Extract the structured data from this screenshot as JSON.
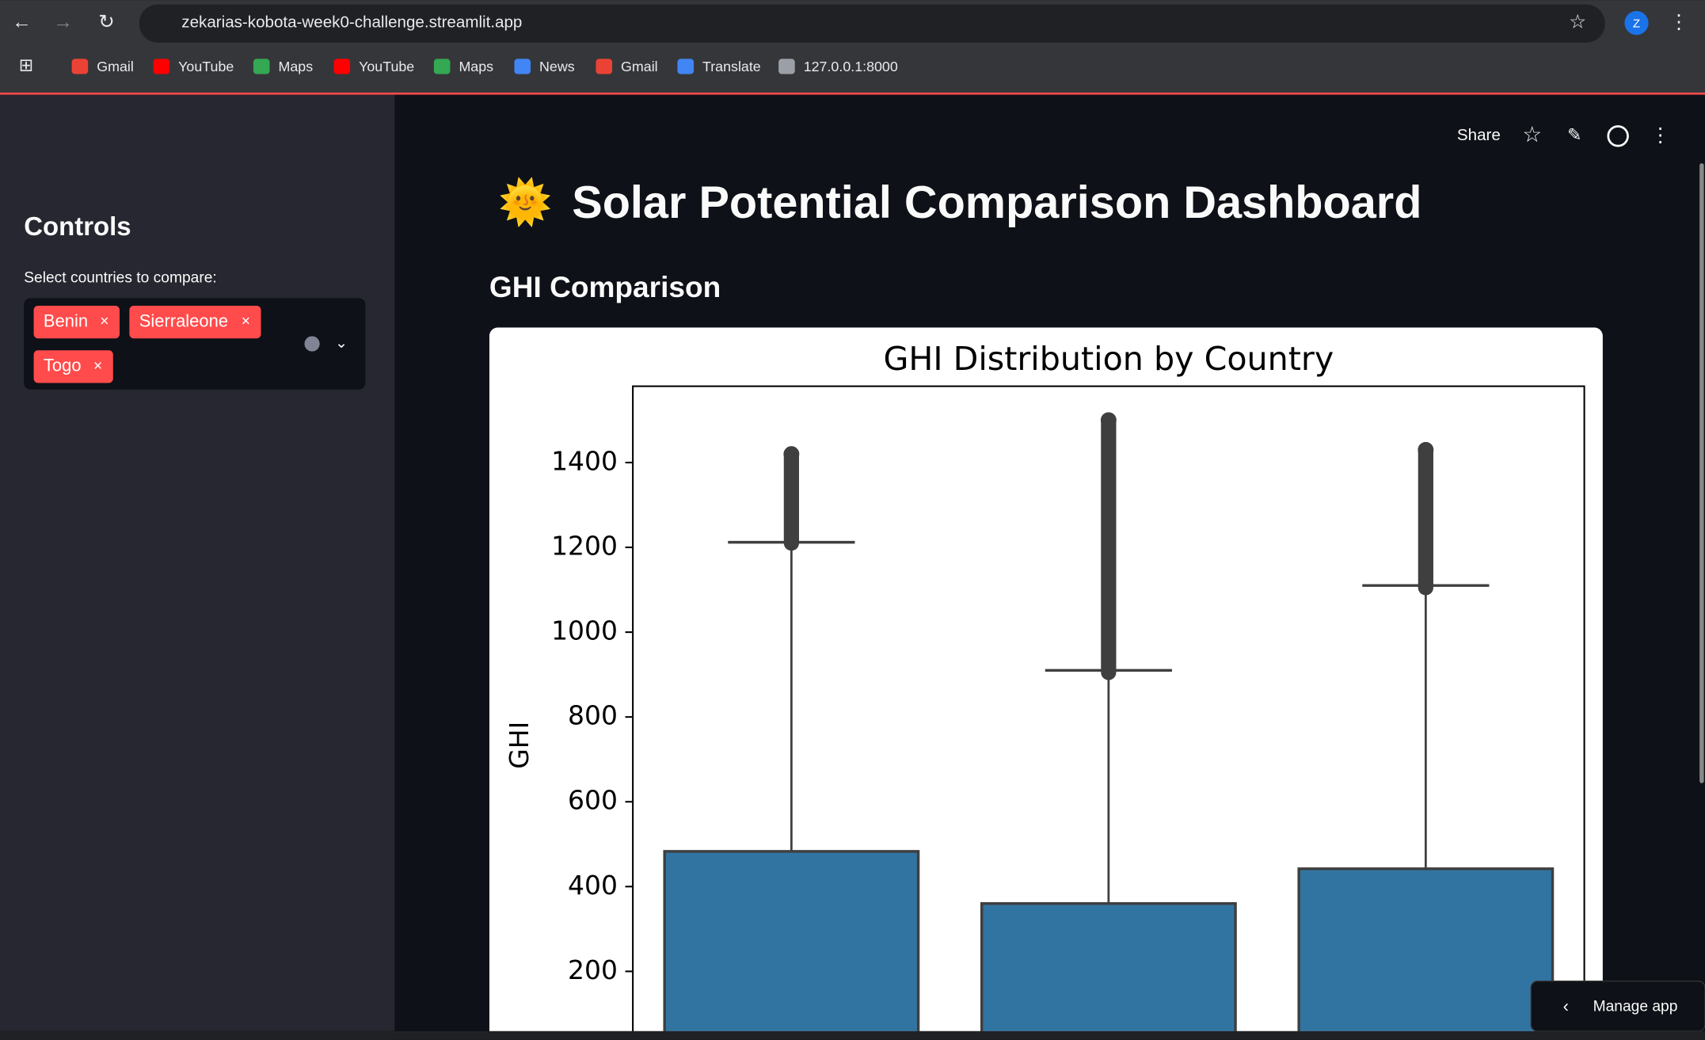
{
  "browser": {
    "url": "zekarias-kobota-week0-challenge.streamlit.app",
    "profile": "Z",
    "bookmarks": [
      "Gmail",
      "YouTube",
      "Maps",
      "YouTube",
      "Maps",
      "News",
      "Gmail",
      "Translate",
      "127.0.0.1:8000"
    ]
  },
  "sidebar": {
    "title": "Controls",
    "select_label": "Select countries to compare:",
    "selected": [
      "Benin",
      "Sierraleone",
      "Togo"
    ]
  },
  "toolbar": {
    "share": "Share"
  },
  "main": {
    "title_icon": "🌞",
    "title": "Solar Potential Comparison Dashboard",
    "subheader": "GHI Comparison"
  },
  "manage_app": "Manage app",
  "chart_data": {
    "type": "box",
    "title": "GHI Distribution by Country",
    "y_label": "GHI",
    "color": "#3274a1",
    "ylim": [
      0,
      1580
    ],
    "yticks": [
      200,
      400,
      600,
      800,
      1000,
      1200,
      1400
    ],
    "boxes": [
      {
        "q3": 483,
        "whisker_high": 1212,
        "outlier_low": 1210,
        "outlier_high": 1420
      },
      {
        "q3": 360,
        "whisker_high": 910,
        "outlier_low": 905,
        "outlier_high": 1500
      },
      {
        "q3": 442,
        "whisker_high": 1110,
        "outlier_low": 1105,
        "outlier_high": 1430
      }
    ]
  }
}
